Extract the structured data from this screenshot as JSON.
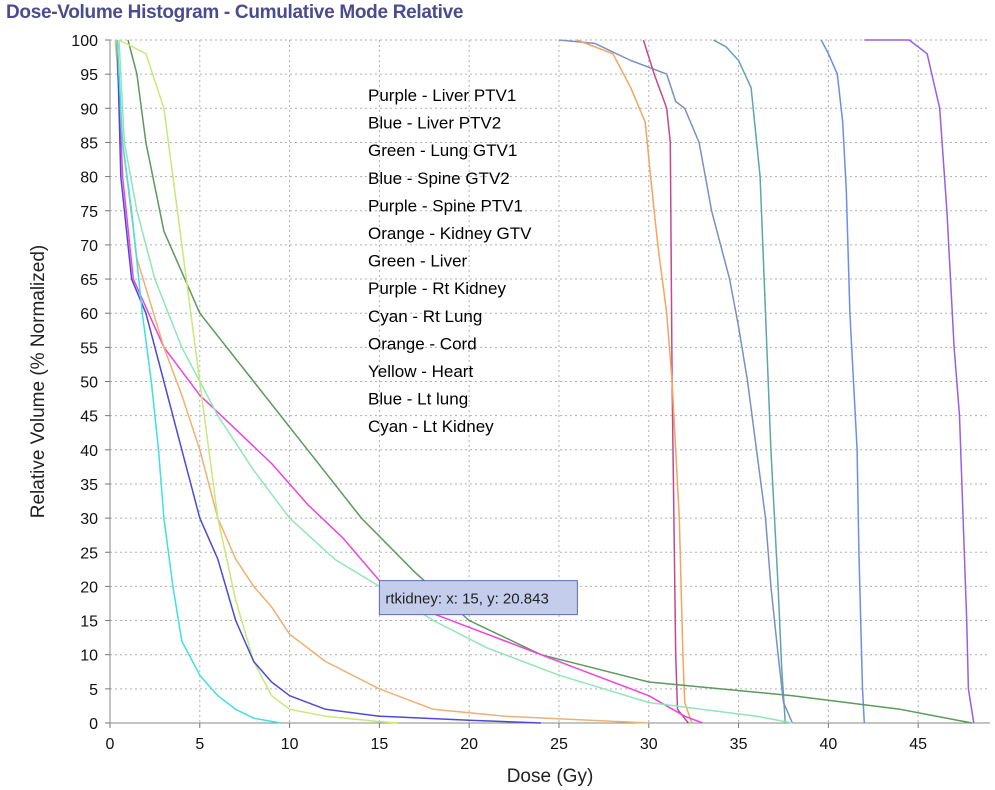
{
  "window": {
    "title": "Dose-Volume Histogram - Cumulative Mode Relative"
  },
  "chart_data": {
    "type": "line",
    "title": "Dose-Volume Histogram - Cumulative Mode Relative",
    "xlabel": "Dose (Gy)",
    "ylabel": "Relative Volume (% Normalized)",
    "xlim": [
      0,
      49
    ],
    "ylim": [
      0,
      100
    ],
    "xticks": [
      0,
      5,
      10,
      15,
      20,
      25,
      30,
      35,
      40,
      45
    ],
    "yticks": [
      0,
      5,
      10,
      15,
      20,
      25,
      30,
      35,
      40,
      45,
      50,
      55,
      60,
      65,
      70,
      75,
      80,
      85,
      90,
      95,
      100
    ],
    "grid": true,
    "legend_lines": [
      "Purple - Liver PTV1",
      "Blue - Liver PTV2",
      "Green - Lung GTV1",
      "Blue - Spine GTV2",
      "Purple - Spine PTV1",
      "Orange - Kidney GTV",
      "Green - Liver",
      "Purple - Rt Kidney",
      "Cyan - Rt Lung",
      "Orange - Cord",
      "Yellow - Heart",
      "Blue - Lt lung",
      "Cyan - Lt Kidney"
    ],
    "tooltip": {
      "text": "rtkidney: x: 15, y: 20.843",
      "x": 15,
      "y": 20.843
    },
    "series": [
      {
        "color": "#9a5ee0",
        "points": [
          [
            42,
            100
          ],
          [
            44.5,
            100
          ],
          [
            45.5,
            98
          ],
          [
            46.2,
            90
          ],
          [
            46.6,
            75
          ],
          [
            47,
            55
          ],
          [
            47.3,
            45
          ],
          [
            47.5,
            30
          ],
          [
            47.7,
            15
          ],
          [
            47.8,
            5
          ],
          [
            48.1,
            0
          ]
        ]
      },
      {
        "color": "#6a8fe8",
        "points": [
          [
            39.6,
            100
          ],
          [
            40,
            98
          ],
          [
            40.5,
            95
          ],
          [
            40.8,
            88
          ],
          [
            41,
            78
          ],
          [
            41.2,
            60
          ],
          [
            41.4,
            50
          ],
          [
            41.6,
            40
          ],
          [
            41.7,
            25
          ],
          [
            41.8,
            15
          ],
          [
            41.9,
            5
          ],
          [
            42,
            0
          ]
        ]
      },
      {
        "color": "#5fa6a6",
        "points": [
          [
            33.6,
            100
          ],
          [
            34.3,
            99
          ],
          [
            35,
            97
          ],
          [
            35.7,
            93
          ],
          [
            36.2,
            80
          ],
          [
            36.5,
            60
          ],
          [
            36.8,
            40
          ],
          [
            37.2,
            20
          ],
          [
            37.4,
            8
          ],
          [
            37.6,
            0
          ]
        ]
      },
      {
        "color": "#7a8fc4",
        "points": [
          [
            25,
            100
          ],
          [
            27,
            99.5
          ],
          [
            29,
            97
          ],
          [
            31,
            95
          ],
          [
            31.5,
            91
          ],
          [
            32,
            90
          ],
          [
            32.8,
            85
          ],
          [
            33.5,
            75
          ],
          [
            34.5,
            65
          ],
          [
            35,
            58
          ],
          [
            35.5,
            50
          ],
          [
            36,
            40
          ],
          [
            36.5,
            30
          ],
          [
            36.8,
            20
          ],
          [
            37.2,
            10
          ],
          [
            37.5,
            3
          ],
          [
            38,
            0
          ]
        ]
      },
      {
        "color": "#c04a8c",
        "points": [
          [
            29.7,
            100
          ],
          [
            30.3,
            95
          ],
          [
            31,
            90
          ],
          [
            31.2,
            85
          ],
          [
            31.3,
            50
          ],
          [
            31.4,
            30
          ],
          [
            31.5,
            10
          ],
          [
            31.6,
            2
          ],
          [
            32.2,
            0
          ]
        ]
      },
      {
        "color": "#f4a460",
        "points": [
          [
            26,
            100
          ],
          [
            28,
            98
          ],
          [
            29,
            93
          ],
          [
            29.8,
            88
          ],
          [
            30.1,
            80
          ],
          [
            30.5,
            70
          ],
          [
            31,
            60
          ],
          [
            31.3,
            50
          ],
          [
            31.5,
            40
          ],
          [
            31.7,
            30
          ],
          [
            31.8,
            20
          ],
          [
            31.9,
            10
          ],
          [
            32,
            3
          ],
          [
            32.4,
            0
          ]
        ]
      },
      {
        "color": "#5b9a5b",
        "points": [
          [
            1,
            100
          ],
          [
            1.5,
            95
          ],
          [
            2,
            85
          ],
          [
            3,
            72
          ],
          [
            5,
            60
          ],
          [
            8,
            50
          ],
          [
            11,
            40
          ],
          [
            14,
            30
          ],
          [
            17,
            22
          ],
          [
            20,
            15
          ],
          [
            24,
            10
          ],
          [
            30,
            6
          ],
          [
            38,
            4
          ],
          [
            44,
            2
          ],
          [
            47,
            0.5
          ],
          [
            48,
            0
          ]
        ]
      },
      {
        "color": "#ee44dd",
        "points": [
          [
            0.4,
            100
          ],
          [
            0.7,
            80
          ],
          [
            1.3,
            65
          ],
          [
            3,
            55
          ],
          [
            5,
            48
          ],
          [
            7,
            43
          ],
          [
            9,
            38
          ],
          [
            11,
            32
          ],
          [
            13,
            27
          ],
          [
            15,
            20.843
          ],
          [
            18,
            16
          ],
          [
            22,
            12
          ],
          [
            26,
            8
          ],
          [
            30,
            4
          ],
          [
            32,
            1
          ],
          [
            33,
            0
          ]
        ]
      },
      {
        "color": "#90e6b8",
        "points": [
          [
            0.5,
            100
          ],
          [
            0.8,
            85
          ],
          [
            1.5,
            75
          ],
          [
            2.5,
            65
          ],
          [
            4,
            55
          ],
          [
            6,
            45
          ],
          [
            8,
            37
          ],
          [
            10,
            30
          ],
          [
            12.5,
            24
          ],
          [
            15,
            20
          ],
          [
            18,
            15
          ],
          [
            21,
            11
          ],
          [
            25,
            7
          ],
          [
            30,
            3
          ],
          [
            36,
            1
          ],
          [
            38,
            0
          ]
        ]
      },
      {
        "color": "#f0b070",
        "points": [
          [
            0.3,
            100
          ],
          [
            0.7,
            85
          ],
          [
            1.5,
            68
          ],
          [
            3,
            55
          ],
          [
            4,
            48
          ],
          [
            5,
            40
          ],
          [
            6,
            30
          ],
          [
            7,
            24
          ],
          [
            8,
            20
          ],
          [
            9,
            17
          ],
          [
            10,
            13
          ],
          [
            12,
            9
          ],
          [
            15,
            5
          ],
          [
            18,
            2
          ],
          [
            22,
            1
          ],
          [
            26,
            0.5
          ],
          [
            30,
            0
          ]
        ]
      },
      {
        "color": "#c8e878",
        "points": [
          [
            0.5,
            100
          ],
          [
            2,
            98
          ],
          [
            3,
            90
          ],
          [
            3.5,
            80
          ],
          [
            4.5,
            60
          ],
          [
            5.5,
            40
          ],
          [
            6,
            30
          ],
          [
            7,
            18
          ],
          [
            8,
            9
          ],
          [
            9,
            4
          ],
          [
            10,
            2
          ],
          [
            12,
            1
          ],
          [
            15,
            0.2
          ],
          [
            16,
            0
          ]
        ]
      },
      {
        "color": "#4b4bd8",
        "points": [
          [
            0.4,
            100
          ],
          [
            0.6,
            80
          ],
          [
            1.2,
            65
          ],
          [
            2,
            60
          ],
          [
            3,
            50
          ],
          [
            4,
            40
          ],
          [
            5,
            30
          ],
          [
            6,
            24
          ],
          [
            7,
            15
          ],
          [
            8,
            9
          ],
          [
            9,
            6
          ],
          [
            10,
            4
          ],
          [
            12,
            2
          ],
          [
            15,
            1
          ],
          [
            20,
            0.4
          ],
          [
            24,
            0
          ]
        ]
      },
      {
        "color": "#40e0e0",
        "points": [
          [
            0.4,
            100
          ],
          [
            0.7,
            85
          ],
          [
            1.2,
            75
          ],
          [
            1.8,
            60
          ],
          [
            2.3,
            50
          ],
          [
            2.7,
            40
          ],
          [
            3,
            30
          ],
          [
            3.5,
            20
          ],
          [
            4,
            12
          ],
          [
            5,
            7
          ],
          [
            6,
            4
          ],
          [
            7,
            2
          ],
          [
            8,
            0.7
          ],
          [
            9.5,
            0
          ]
        ]
      }
    ]
  }
}
